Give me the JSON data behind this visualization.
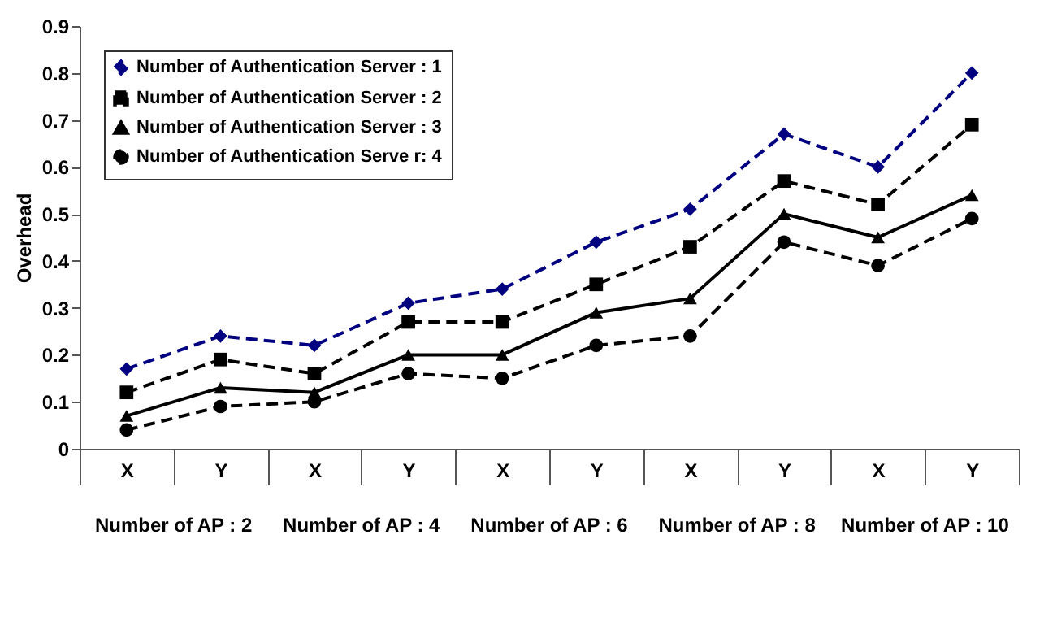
{
  "chart_data": {
    "type": "line",
    "ylabel": "Overhead",
    "categories": [
      "X",
      "Y",
      "X",
      "Y",
      "X",
      "Y",
      "X",
      "Y",
      "X",
      "Y"
    ],
    "annotations": [
      "Number of AP : 2",
      "Number of AP : 4",
      "Number of AP : 6",
      "Number of AP : 8",
      "Number of AP : 10"
    ],
    "ylim": [
      0,
      0.9
    ],
    "yticks": [
      0,
      0.1,
      0.2,
      0.3,
      0.4,
      0.5,
      0.6,
      0.7,
      0.8,
      0.9
    ],
    "grid": false,
    "legend": "top left",
    "series": [
      {
        "name": "Number of Authentication Server : 1",
        "color": "#000080",
        "marker": "diamond",
        "line_style": "dashed",
        "values": [
          0.17,
          0.24,
          0.22,
          0.31,
          0.34,
          0.44,
          0.51,
          0.67,
          0.6,
          0.8
        ]
      },
      {
        "name": "Number of Authentication Server : 2",
        "color": "#000000",
        "marker": "square",
        "line_style": "dashed",
        "values": [
          0.12,
          0.19,
          0.16,
          0.27,
          0.27,
          0.35,
          0.43,
          0.57,
          0.52,
          0.69
        ]
      },
      {
        "name": "Number of Authentication Server : 3",
        "color": "#000000",
        "marker": "triangle",
        "line_style": "solid",
        "values": [
          0.07,
          0.13,
          0.12,
          0.2,
          0.2,
          0.29,
          0.32,
          0.5,
          0.45,
          0.54
        ]
      },
      {
        "name": "Number of Authentication Serve r: 4",
        "color": "#000000",
        "marker": "circle",
        "line_style": "dashed",
        "values": [
          0.04,
          0.09,
          0.1,
          0.16,
          0.15,
          0.22,
          0.24,
          0.44,
          0.39,
          0.49
        ]
      }
    ]
  }
}
